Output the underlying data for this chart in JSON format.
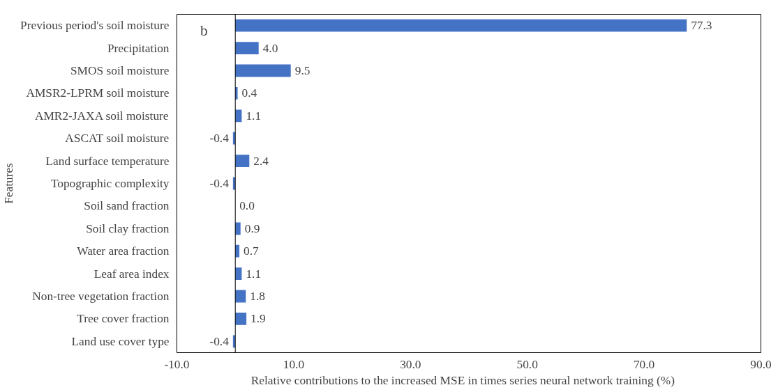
{
  "chart_data": {
    "type": "bar",
    "orientation": "horizontal",
    "xlabel": "Relative  contributions  to the increased MSE in times  series neural network training  (%)",
    "ylabel": "Features",
    "categories": [
      "Previous period's soil moisture",
      "Precipitation",
      "SMOS soil moisture",
      "AMSR2-LPRM soil moisture",
      "AMR2-JAXA soil moisture",
      "ASCAT soil moisture",
      "Land surface temperature",
      "Topographic complexity",
      "Soil sand fraction",
      "Soil clay fraction",
      "Water area fraction",
      "Leaf area index",
      "Non-tree vegetation fraction",
      "Tree cover fraction",
      "Land use cover type"
    ],
    "values": [
      77.3,
      4.0,
      9.5,
      0.4,
      1.1,
      -0.4,
      2.4,
      -0.4,
      0.0,
      0.9,
      0.7,
      1.1,
      1.8,
      1.9,
      -0.4
    ],
    "value_labels": [
      "77.3",
      "4.0",
      "9.5",
      "0.4",
      "1.1",
      "-0.4",
      "2.4",
      "-0.4",
      "0.0",
      "0.9",
      "0.7",
      "1.1",
      "1.8",
      "1.9",
      "-0.4"
    ],
    "color": "#4472c4",
    "xlim": [
      -10,
      90
    ],
    "xticks": [
      {
        "value": -10,
        "label": "-10.0"
      },
      {
        "value": 10,
        "label": "10.0"
      },
      {
        "value": 30,
        "label": "30.0"
      },
      {
        "value": 50,
        "label": "50.0"
      },
      {
        "value": 70,
        "label": "70.0"
      },
      {
        "value": 90,
        "label": "90.0"
      }
    ],
    "ref_lines": [
      {
        "axis": "x",
        "value": 0,
        "color": "#000000"
      }
    ],
    "annotations": [
      "b"
    ],
    "grid": false
  }
}
